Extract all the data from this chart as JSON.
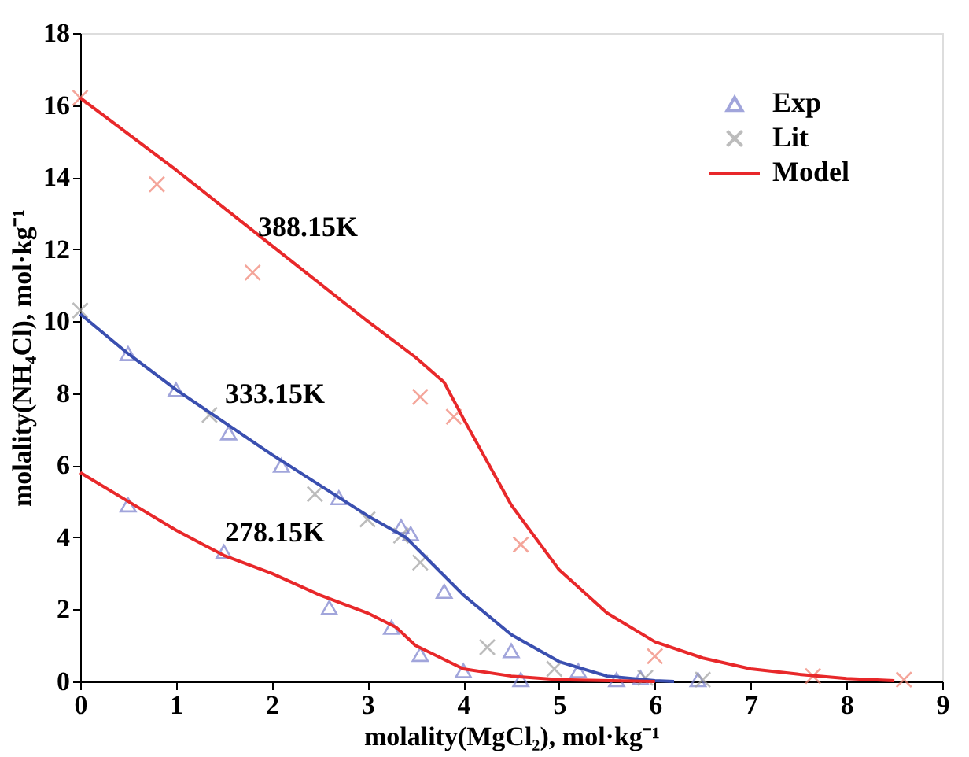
{
  "chart_data": {
    "type": "line",
    "xlabel": "molality(MgCl₂), mol·kg⁻¹",
    "ylabel": "molality(NH₄Cl), mol·kg⁻¹",
    "xlim": [
      0,
      9
    ],
    "ylim": [
      0,
      18
    ],
    "xticks": [
      0,
      1,
      2,
      3,
      4,
      5,
      6,
      7,
      8,
      9
    ],
    "yticks": [
      0,
      2,
      4,
      6,
      8,
      10,
      12,
      14,
      16,
      18
    ],
    "grid": false,
    "legend": "top right",
    "annotations": [
      "388.15K",
      "333.15K",
      "278.15K"
    ],
    "series": [
      {
        "name": "Exp",
        "type": "scatter",
        "marker": "triangle",
        "color": "#7a80cc",
        "x": [
          0.5,
          1.0,
          1.55,
          2.1,
          2.7,
          3.35,
          3.45,
          3.8,
          4.5,
          5.2,
          5.6,
          5.85,
          6.45,
          0.5,
          1.5,
          2.6,
          3.25,
          3.55,
          4.0,
          4.6
        ],
        "values": [
          9.1,
          8.1,
          6.9,
          6.0,
          5.1,
          4.3,
          4.1,
          2.5,
          0.85,
          0.3,
          0.05,
          0.1,
          0.05,
          4.9,
          3.6,
          2.05,
          1.5,
          0.75,
          0.3,
          0.05
        ]
      },
      {
        "name": "Lit",
        "type": "scatter",
        "marker": "cross",
        "color": "#a0a0a0",
        "x": [
          0,
          1.35,
          2.45,
          3.0,
          3.35,
          3.55,
          4.25,
          4.95,
          5.9,
          6.5
        ],
        "values": [
          10.3,
          7.4,
          5.2,
          4.5,
          4.05,
          3.3,
          0.95,
          0.35,
          0.1,
          0.05
        ]
      },
      {
        "type": "scatter",
        "marker": "cross",
        "color": "#f08070",
        "x": [
          0,
          0.8,
          1.8,
          3.55,
          3.9,
          4.6,
          6.0,
          7.65,
          8.6
        ],
        "values": [
          16.2,
          13.8,
          11.35,
          7.9,
          7.35,
          3.8,
          0.7,
          0.15,
          0.05
        ]
      },
      {
        "name": "Model",
        "color": "#e8282a",
        "x": [
          0,
          1,
          2,
          3,
          3.5,
          3.8,
          4.0,
          4.5,
          5,
          5.5,
          6,
          6.5,
          7,
          7.5,
          8,
          8.5
        ],
        "values": [
          16.2,
          14.2,
          12.1,
          10.0,
          9.0,
          8.3,
          7.3,
          4.9,
          3.1,
          1.9,
          1.1,
          0.65,
          0.35,
          0.2,
          0.08,
          0.02
        ]
      },
      {
        "color": "#3a4fb0",
        "x": [
          0,
          0.5,
          1,
          2,
          3,
          3.4,
          3.7,
          4,
          4.5,
          5,
          5.5,
          6,
          6.2
        ],
        "values": [
          10.2,
          9.1,
          8.1,
          6.3,
          4.6,
          4.0,
          3.2,
          2.4,
          1.3,
          0.55,
          0.15,
          0.02,
          0
        ]
      },
      {
        "color": "#e8282a",
        "x": [
          0,
          0.5,
          1,
          1.5,
          2,
          2.5,
          3,
          3.3,
          3.5,
          4,
          4.5,
          5,
          6
        ],
        "values": [
          5.8,
          5.0,
          4.2,
          3.5,
          3.0,
          2.4,
          1.9,
          1.5,
          1.0,
          0.35,
          0.15,
          0.05,
          0
        ]
      }
    ]
  }
}
